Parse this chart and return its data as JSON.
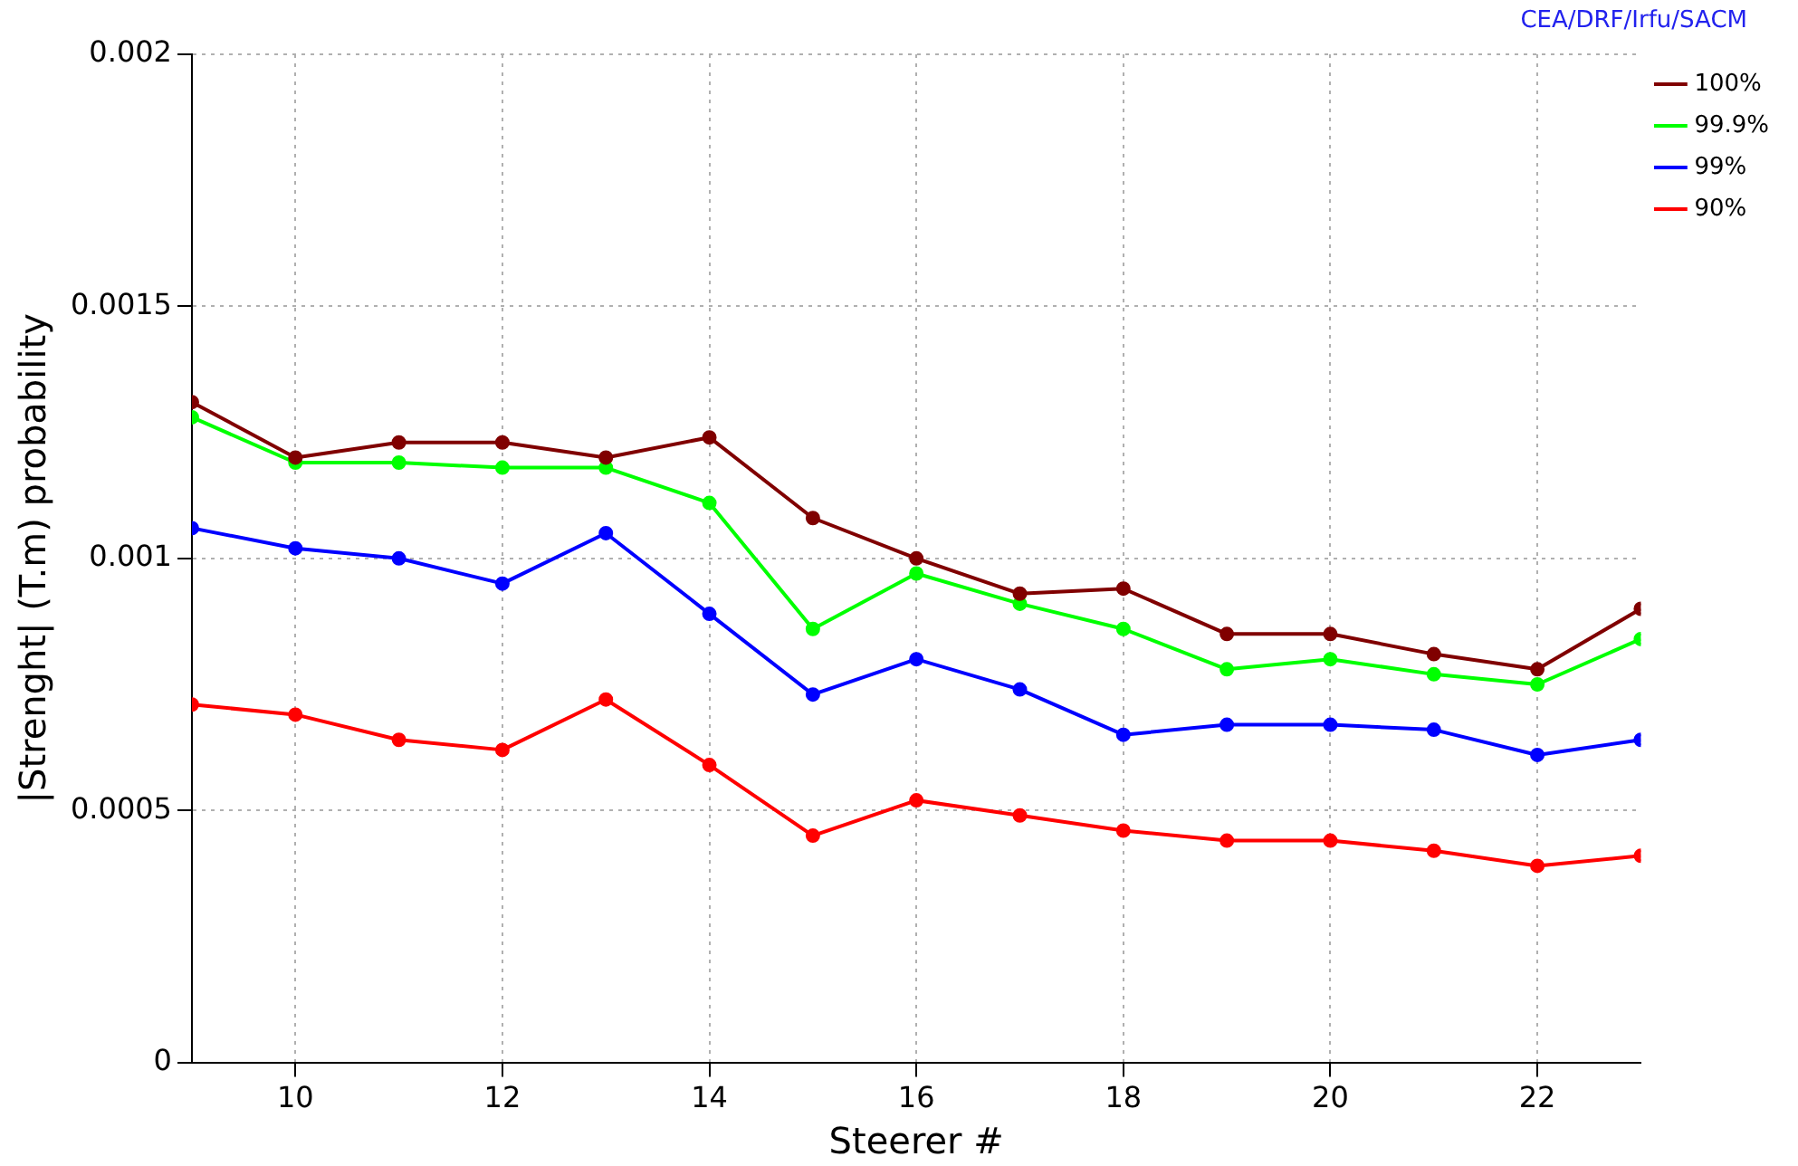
{
  "chart_data": {
    "type": "line",
    "xlabel": "Steerer #",
    "ylabel": "|Strenght| (T.m) probability",
    "annotations": [
      "CEA/DRF/Irfu/SACM"
    ],
    "x": [
      9,
      10,
      11,
      12,
      13,
      14,
      15,
      16,
      17,
      18,
      19,
      20,
      21,
      22,
      23
    ],
    "series": [
      {
        "name": "100%",
        "color": "#800000",
        "values": [
          0.00131,
          0.0012,
          0.00123,
          0.00123,
          0.0012,
          0.00124,
          0.00108,
          0.001,
          0.00093,
          0.00094,
          0.00085,
          0.00085,
          0.00081,
          0.00078,
          0.0009
        ]
      },
      {
        "name": "99.9%",
        "color": "#00ff00",
        "values": [
          0.00128,
          0.00119,
          0.00119,
          0.00118,
          0.00118,
          0.00111,
          0.00086,
          0.00097,
          0.00091,
          0.00086,
          0.00078,
          0.0008,
          0.00077,
          0.00075,
          0.00084
        ]
      },
      {
        "name": "99%",
        "color": "#0000ff",
        "values": [
          0.00106,
          0.00102,
          0.001,
          0.00095,
          0.00105,
          0.00089,
          0.00073,
          0.0008,
          0.00074,
          0.00065,
          0.00067,
          0.00067,
          0.00066,
          0.00061,
          0.00064
        ]
      },
      {
        "name": "90%",
        "color": "#ff0000",
        "values": [
          0.00071,
          0.00069,
          0.00064,
          0.00062,
          0.00072,
          0.00059,
          0.00045,
          0.00052,
          0.00049,
          0.00046,
          0.00044,
          0.00044,
          0.00042,
          0.00039,
          0.00041
        ]
      }
    ],
    "xlim": [
      9,
      23
    ],
    "xticks": [
      10,
      12,
      14,
      16,
      18,
      20,
      22
    ],
    "ylim": [
      0,
      0.002
    ],
    "yticks": [
      0,
      0.0005,
      0.001,
      0.0015,
      0.002
    ],
    "grid": true,
    "legend": "right",
    "marker": "circle",
    "line_style": "solid"
  }
}
